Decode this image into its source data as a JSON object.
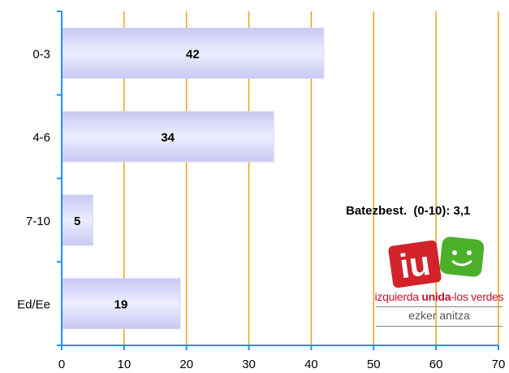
{
  "chart_data": {
    "type": "bar",
    "orientation": "horizontal",
    "categories": [
      "0-3",
      "4-6",
      "7-10",
      "Ed/Ee"
    ],
    "values": [
      42,
      34,
      5,
      19
    ],
    "xlim": [
      0,
      70
    ],
    "xticks": [
      0,
      10,
      20,
      30,
      40,
      50,
      60,
      70
    ],
    "grid": true,
    "title": "",
    "xlabel": "",
    "ylabel": "",
    "annotation": "Batezbest.  (0-10): 3,1",
    "colors": {
      "bar_edge": "#c8c8f4",
      "bar_fill": "#ebebff",
      "grid": "#e8a317",
      "axis": "#1e90ff"
    }
  },
  "logo": {
    "mark": "iu",
    "party_part1": "izquierda ",
    "party_bold": "unida",
    "party_part2": "-los verdes",
    "subtitle": "ezker anitza",
    "colors": {
      "red": "#d2232a",
      "green": "#4caf2a"
    }
  }
}
